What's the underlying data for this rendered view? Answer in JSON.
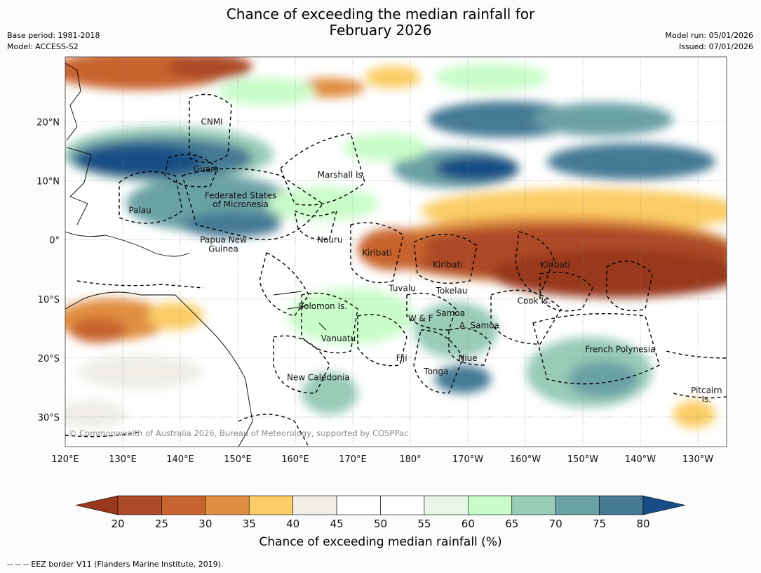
{
  "title": {
    "line1": "Chance of exceeding the median rainfall for",
    "line2": "February 2026"
  },
  "meta": {
    "base_period": "Base period: 1981-2018",
    "model": "Model: ACCESS-S2",
    "model_run": "Model run: 05/01/2026",
    "issued": "Issued: 07/01/2026"
  },
  "map": {
    "lon_range": [
      120,
      235
    ],
    "lat_range": [
      -35,
      31
    ],
    "lon_ticks": [
      {
        "lon": 120,
        "label": "120°E"
      },
      {
        "lon": 130,
        "label": "130°E"
      },
      {
        "lon": 140,
        "label": "140°E"
      },
      {
        "lon": 150,
        "label": "150°E"
      },
      {
        "lon": 160,
        "label": "160°E"
      },
      {
        "lon": 170,
        "label": "170°E"
      },
      {
        "lon": 180,
        "label": "180°"
      },
      {
        "lon": 190,
        "label": "170°W"
      },
      {
        "lon": 200,
        "label": "160°W"
      },
      {
        "lon": 210,
        "label": "150°W"
      },
      {
        "lon": 220,
        "label": "140°W"
      },
      {
        "lon": 230,
        "label": "130°W"
      }
    ],
    "lat_ticks": [
      {
        "lat": 20,
        "label": "20°N"
      },
      {
        "lat": 10,
        "label": "10°N"
      },
      {
        "lat": 0,
        "label": "0°"
      },
      {
        "lat": -10,
        "label": "10°S"
      },
      {
        "lat": -20,
        "label": "20°S"
      },
      {
        "lat": -30,
        "label": "30°S"
      }
    ],
    "regions": [
      {
        "name": "CNMI",
        "lon": 145.5,
        "lat": 20.0
      },
      {
        "name": "Guam",
        "lon": 144.5,
        "lat": 12.0
      },
      {
        "name": "Marshall Is.",
        "lon": 168.0,
        "lat": 11.0
      },
      {
        "name": "Federated States",
        "lon": 150.5,
        "lat": 7.5
      },
      {
        "name": "of Micronesia",
        "lon": 150.5,
        "lat": 6.0
      },
      {
        "name": "Palau",
        "lon": 133.0,
        "lat": 5.0
      },
      {
        "name": "Papua New",
        "lon": 147.5,
        "lat": 0.0
      },
      {
        "name": "Guinea",
        "lon": 147.5,
        "lat": -1.5
      },
      {
        "name": "Nauru",
        "lon": 166.0,
        "lat": 0.0
      },
      {
        "name": "Kiribati",
        "lon": 174.2,
        "lat": -2.2
      },
      {
        "name": "Kiribati",
        "lon": 186.5,
        "lat": -4.2
      },
      {
        "name": "Kiribati",
        "lon": 205.2,
        "lat": -4.2
      },
      {
        "name": "Tuvalu",
        "lon": 178.6,
        "lat": -8.2
      },
      {
        "name": "Tokelau",
        "lon": 187.2,
        "lat": -8.6
      },
      {
        "name": "Solomon Is.",
        "lon": 164.8,
        "lat": -11.2
      },
      {
        "name": "Cook Is.",
        "lon": 201.5,
        "lat": -10.3
      },
      {
        "name": "W & F",
        "lon": 181.8,
        "lat": -13.3
      },
      {
        "name": "Samoa",
        "lon": 187.0,
        "lat": -12.4
      },
      {
        "name": "A. Samoa",
        "lon": 192.0,
        "lat": -14.5
      },
      {
        "name": "Vanuatu",
        "lon": 167.5,
        "lat": -16.7
      },
      {
        "name": "Fiji",
        "lon": 178.5,
        "lat": -20.0
      },
      {
        "name": "Niue",
        "lon": 190.0,
        "lat": -20.0
      },
      {
        "name": "Tonga",
        "lon": 184.5,
        "lat": -22.3
      },
      {
        "name": "New Caledonia",
        "lon": 164.0,
        "lat": -23.3
      },
      {
        "name": "French Polynesia",
        "lon": 216.5,
        "lat": -18.5
      },
      {
        "name": "Pitcairn",
        "lon": 231.5,
        "lat": -25.5
      },
      {
        "name": "Is.",
        "lon": 231.5,
        "lat": -27.0
      }
    ],
    "copyright": "© Commonwealth of Australia 2026, Bureau of Meteorology, supported by COSPPac"
  },
  "colorbar": {
    "ticks": [
      "20",
      "25",
      "30",
      "35",
      "40",
      "45",
      "50",
      "55",
      "60",
      "65",
      "70",
      "75",
      "80"
    ],
    "colors": [
      "#ad4a27",
      "#c8642f",
      "#e08f42",
      "#fbcd66",
      "#efede6",
      "#ffffff",
      "#ffffff",
      "#e8f6e6",
      "#c9fcc9",
      "#99cbb7",
      "#6aa1a5",
      "#457994"
    ],
    "under_color": "#98381c",
    "over_color": "#164d84",
    "title": "Chance of exceeding median rainfall (%)"
  },
  "footnote": "-- -- -- EEZ border V11 (Flanders Marine Institute, 2019)."
}
